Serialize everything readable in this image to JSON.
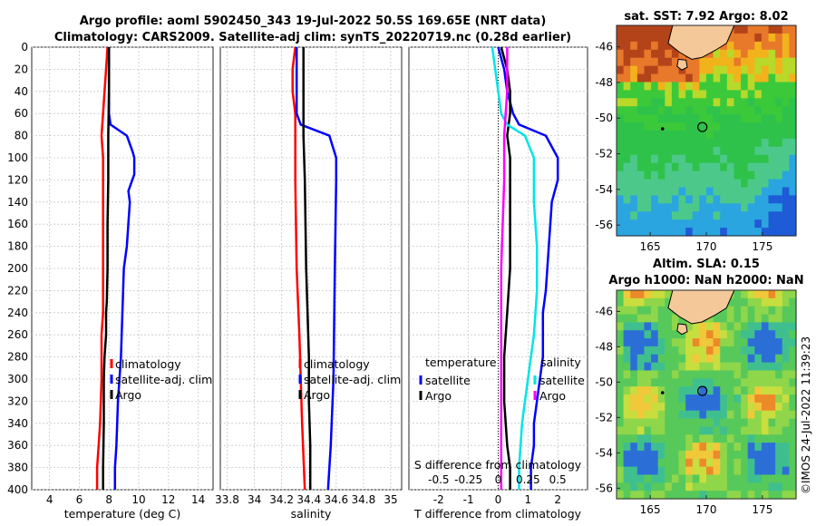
{
  "title": {
    "line1": "Argo profile: aoml 5902450_343 19-Jul-2022 50.5S 169.65E (NRT data)",
    "line2": "Climatology: CARS2009. Satellite-adj clim: synTS_20220719.nc (0.28d earlier)"
  },
  "stamp": "©IMOS 24-Jul-2022 11:39:23",
  "colors": {
    "climatology": "#ff0000",
    "satellite": "#0000ff",
    "argo": "#000000",
    "salinity_satellite": "#00e5e5",
    "salinity_argo": "#ff00ff",
    "land": "#f5c89a"
  },
  "chart_data": [
    {
      "id": "temperature",
      "type": "line",
      "xlabel": "temperature (deg C)",
      "ylabel": "",
      "xlim": [
        2.8,
        15
      ],
      "ylim": [
        400,
        0
      ],
      "xticks": [
        "4",
        "6",
        "8",
        "10",
        "12",
        "14"
      ],
      "xtick_values": [
        4,
        6,
        8,
        10,
        12,
        14
      ],
      "yticks": [
        "0",
        "20",
        "40",
        "60",
        "80",
        "100",
        "120",
        "140",
        "160",
        "180",
        "200",
        "220",
        "240",
        "260",
        "280",
        "300",
        "320",
        "340",
        "360",
        "380",
        "400"
      ],
      "ytick_values": [
        0,
        20,
        40,
        60,
        80,
        100,
        120,
        140,
        160,
        180,
        200,
        220,
        240,
        260,
        280,
        300,
        320,
        340,
        360,
        380,
        400
      ],
      "grid": true,
      "series": [
        {
          "name": "climatology",
          "color": "#ff0000",
          "width": 2.5,
          "x": [
            7.9,
            7.8,
            7.7,
            7.6,
            7.5,
            7.6,
            7.6,
            7.6,
            7.6,
            7.6,
            7.6,
            7.5,
            7.5,
            7.4,
            7.3,
            7.2,
            7.2
          ],
          "y": [
            0,
            20,
            40,
            60,
            80,
            100,
            140,
            180,
            200,
            220,
            240,
            260,
            300,
            340,
            360,
            380,
            400
          ]
        },
        {
          "name": "satellite-adj. clim",
          "color": "#0000ff",
          "width": 2.5,
          "x": [
            8.0,
            8.0,
            8.0,
            8.0,
            8.1,
            9.2,
            9.6,
            9.7,
            9.7,
            9.3,
            9.4,
            9.2,
            9.0,
            8.9,
            8.8,
            8.6,
            8.5,
            8.4,
            8.4
          ],
          "y": [
            0,
            20,
            40,
            60,
            70,
            80,
            95,
            100,
            115,
            130,
            140,
            180,
            200,
            240,
            280,
            320,
            360,
            380,
            400
          ]
        },
        {
          "name": "Argo",
          "color": "#000000",
          "width": 2.5,
          "x": [
            8.0,
            8.0,
            7.95,
            7.95,
            7.9,
            7.9,
            7.85,
            7.8,
            7.8,
            7.7,
            7.65,
            7.65,
            7.6,
            7.6
          ],
          "y": [
            0,
            40,
            80,
            120,
            160,
            200,
            230,
            240,
            260,
            280,
            300,
            340,
            380,
            400
          ]
        }
      ],
      "legend": [
        {
          "label": "climatology",
          "color": "#ff0000"
        },
        {
          "label": "satellite-adj. clim",
          "color": "#0000ff"
        },
        {
          "label": "Argo",
          "color": "#000000"
        }
      ]
    },
    {
      "id": "salinity",
      "type": "line",
      "xlabel": "salinity",
      "ylabel": "",
      "xlim": [
        33.75,
        35.08
      ],
      "ylim": [
        400,
        0
      ],
      "xticks": [
        "33.8",
        "34",
        "34.2",
        "34.4",
        "34.6",
        "34.8",
        "35"
      ],
      "xtick_values": [
        33.8,
        34.0,
        34.2,
        34.4,
        34.6,
        34.8,
        35.0
      ],
      "grid": true,
      "series": [
        {
          "name": "climatology",
          "color": "#ff0000",
          "width": 2.5,
          "x": [
            34.3,
            34.28,
            34.28,
            34.3,
            34.3,
            34.3,
            34.31,
            34.33,
            34.35,
            34.37
          ],
          "y": [
            0,
            20,
            40,
            60,
            80,
            120,
            200,
            260,
            340,
            400
          ]
        },
        {
          "name": "satellite-adj. clim",
          "color": "#0000ff",
          "width": 2.5,
          "x": [
            34.31,
            34.31,
            34.31,
            34.31,
            34.34,
            34.55,
            34.6,
            34.6,
            34.59,
            34.58,
            34.56,
            34.54
          ],
          "y": [
            0,
            20,
            40,
            60,
            70,
            80,
            100,
            120,
            200,
            300,
            360,
            400
          ]
        },
        {
          "name": "Argo",
          "color": "#000000",
          "width": 2.5,
          "x": [
            34.36,
            34.36,
            34.36,
            34.37,
            34.38,
            34.39,
            34.4,
            34.4,
            34.41,
            34.41
          ],
          "y": [
            0,
            40,
            80,
            120,
            200,
            240,
            280,
            320,
            360,
            400
          ]
        }
      ],
      "legend": [
        {
          "label": "climatology",
          "color": "#ff0000"
        },
        {
          "label": "satellite-adj. clim",
          "color": "#0000ff"
        },
        {
          "label": "Argo",
          "color": "#000000"
        }
      ]
    },
    {
      "id": "difference",
      "type": "line",
      "xlabel": "T difference from climatology",
      "xlabel_top": "S difference from climatology",
      "xlim": [
        -3,
        3
      ],
      "ylim": [
        400,
        0
      ],
      "xticks": [
        "-2",
        "-1",
        "0",
        "1",
        "2"
      ],
      "xtick_values": [
        -2,
        -1,
        0,
        1,
        2
      ],
      "sticks": [
        "-0.5",
        "-0.25",
        "0",
        "0.25",
        "0.5"
      ],
      "stick_values": [
        -2,
        -1,
        0,
        1,
        2
      ],
      "grid": true,
      "series": [
        {
          "name": "temperature satellite",
          "color": "#0000ff",
          "width": 2.5,
          "x": [
            0.0,
            0.2,
            0.3,
            0.5,
            0.7,
            1.6,
            2.0,
            2.0,
            1.8,
            1.7,
            1.6,
            1.5,
            1.5,
            1.4,
            1.3,
            1.2,
            1.2,
            1.1,
            1.1
          ],
          "y": [
            0,
            20,
            40,
            60,
            70,
            80,
            100,
            120,
            140,
            180,
            220,
            240,
            280,
            300,
            320,
            340,
            360,
            380,
            400
          ]
        },
        {
          "name": "temperature Argo",
          "color": "#000000",
          "width": 2.5,
          "x": [
            0.1,
            0.3,
            0.4,
            0.4,
            0.3,
            0.4,
            0.4,
            0.4,
            0.3,
            0.2,
            0.2,
            0.3,
            0.4,
            0.4
          ],
          "y": [
            0,
            20,
            40,
            60,
            80,
            100,
            140,
            200,
            240,
            280,
            320,
            360,
            380,
            400
          ]
        },
        {
          "name": "salinity satellite",
          "color": "#00e5e5",
          "width": 2.5,
          "x": [
            -0.2,
            -0.1,
            0.0,
            0.1,
            0.3,
            0.9,
            1.2,
            1.2,
            1.3,
            1.3,
            1.2,
            1.1,
            1.0,
            0.9,
            0.8,
            0.7,
            0.7
          ],
          "y": [
            0,
            20,
            40,
            60,
            70,
            80,
            100,
            140,
            180,
            220,
            260,
            280,
            300,
            320,
            340,
            380,
            400
          ]
        },
        {
          "name": "salinity Argo",
          "color": "#ff00ff",
          "width": 2.5,
          "x": [
            0.3,
            0.3,
            0.2,
            0.2,
            0.1,
            0.1,
            0.1,
            0.1,
            0.1
          ],
          "y": [
            0,
            40,
            80,
            120,
            200,
            260,
            320,
            380,
            400
          ]
        }
      ],
      "legend_left_title": "temperature",
      "legend_right_title": "salinity",
      "legend_left": [
        {
          "label": "satellite",
          "color": "#0000ff"
        },
        {
          "label": "Argo",
          "color": "#000000"
        }
      ],
      "legend_right": [
        {
          "label": "satellite",
          "color": "#00e5e5"
        },
        {
          "label": "Argo",
          "color": "#ff00ff"
        }
      ]
    },
    {
      "id": "sst_map",
      "type": "heatmap",
      "title": "sat. SST: 7.92 Argo: 8.02",
      "xlim": [
        162,
        178
      ],
      "ylim": [
        -56.6,
        -44.8
      ],
      "xticks": [
        "165",
        "170",
        "175"
      ],
      "xtick_values": [
        165,
        170,
        175
      ],
      "yticks": [
        "-46",
        "-48",
        "-50",
        "-52",
        "-54",
        "-56"
      ],
      "ytick_values": [
        -46,
        -48,
        -50,
        -52,
        -54,
        -56
      ],
      "marker": {
        "lon": 169.65,
        "lat": -50.5
      }
    },
    {
      "id": "sla_map",
      "type": "heatmap",
      "title_line1": "Altim. SLA: 0.15",
      "title_line2": "Argo h1000: NaN h2000: NaN",
      "xlim": [
        162,
        178
      ],
      "ylim": [
        -56.6,
        -44.8
      ],
      "xticks": [
        "165",
        "170",
        "175"
      ],
      "xtick_values": [
        165,
        170,
        175
      ],
      "yticks": [
        "-46",
        "-48",
        "-50",
        "-52",
        "-54",
        "-56"
      ],
      "ytick_values": [
        -46,
        -48,
        -50,
        -52,
        -54,
        -56
      ],
      "marker": {
        "lon": 169.65,
        "lat": -50.5
      }
    }
  ]
}
